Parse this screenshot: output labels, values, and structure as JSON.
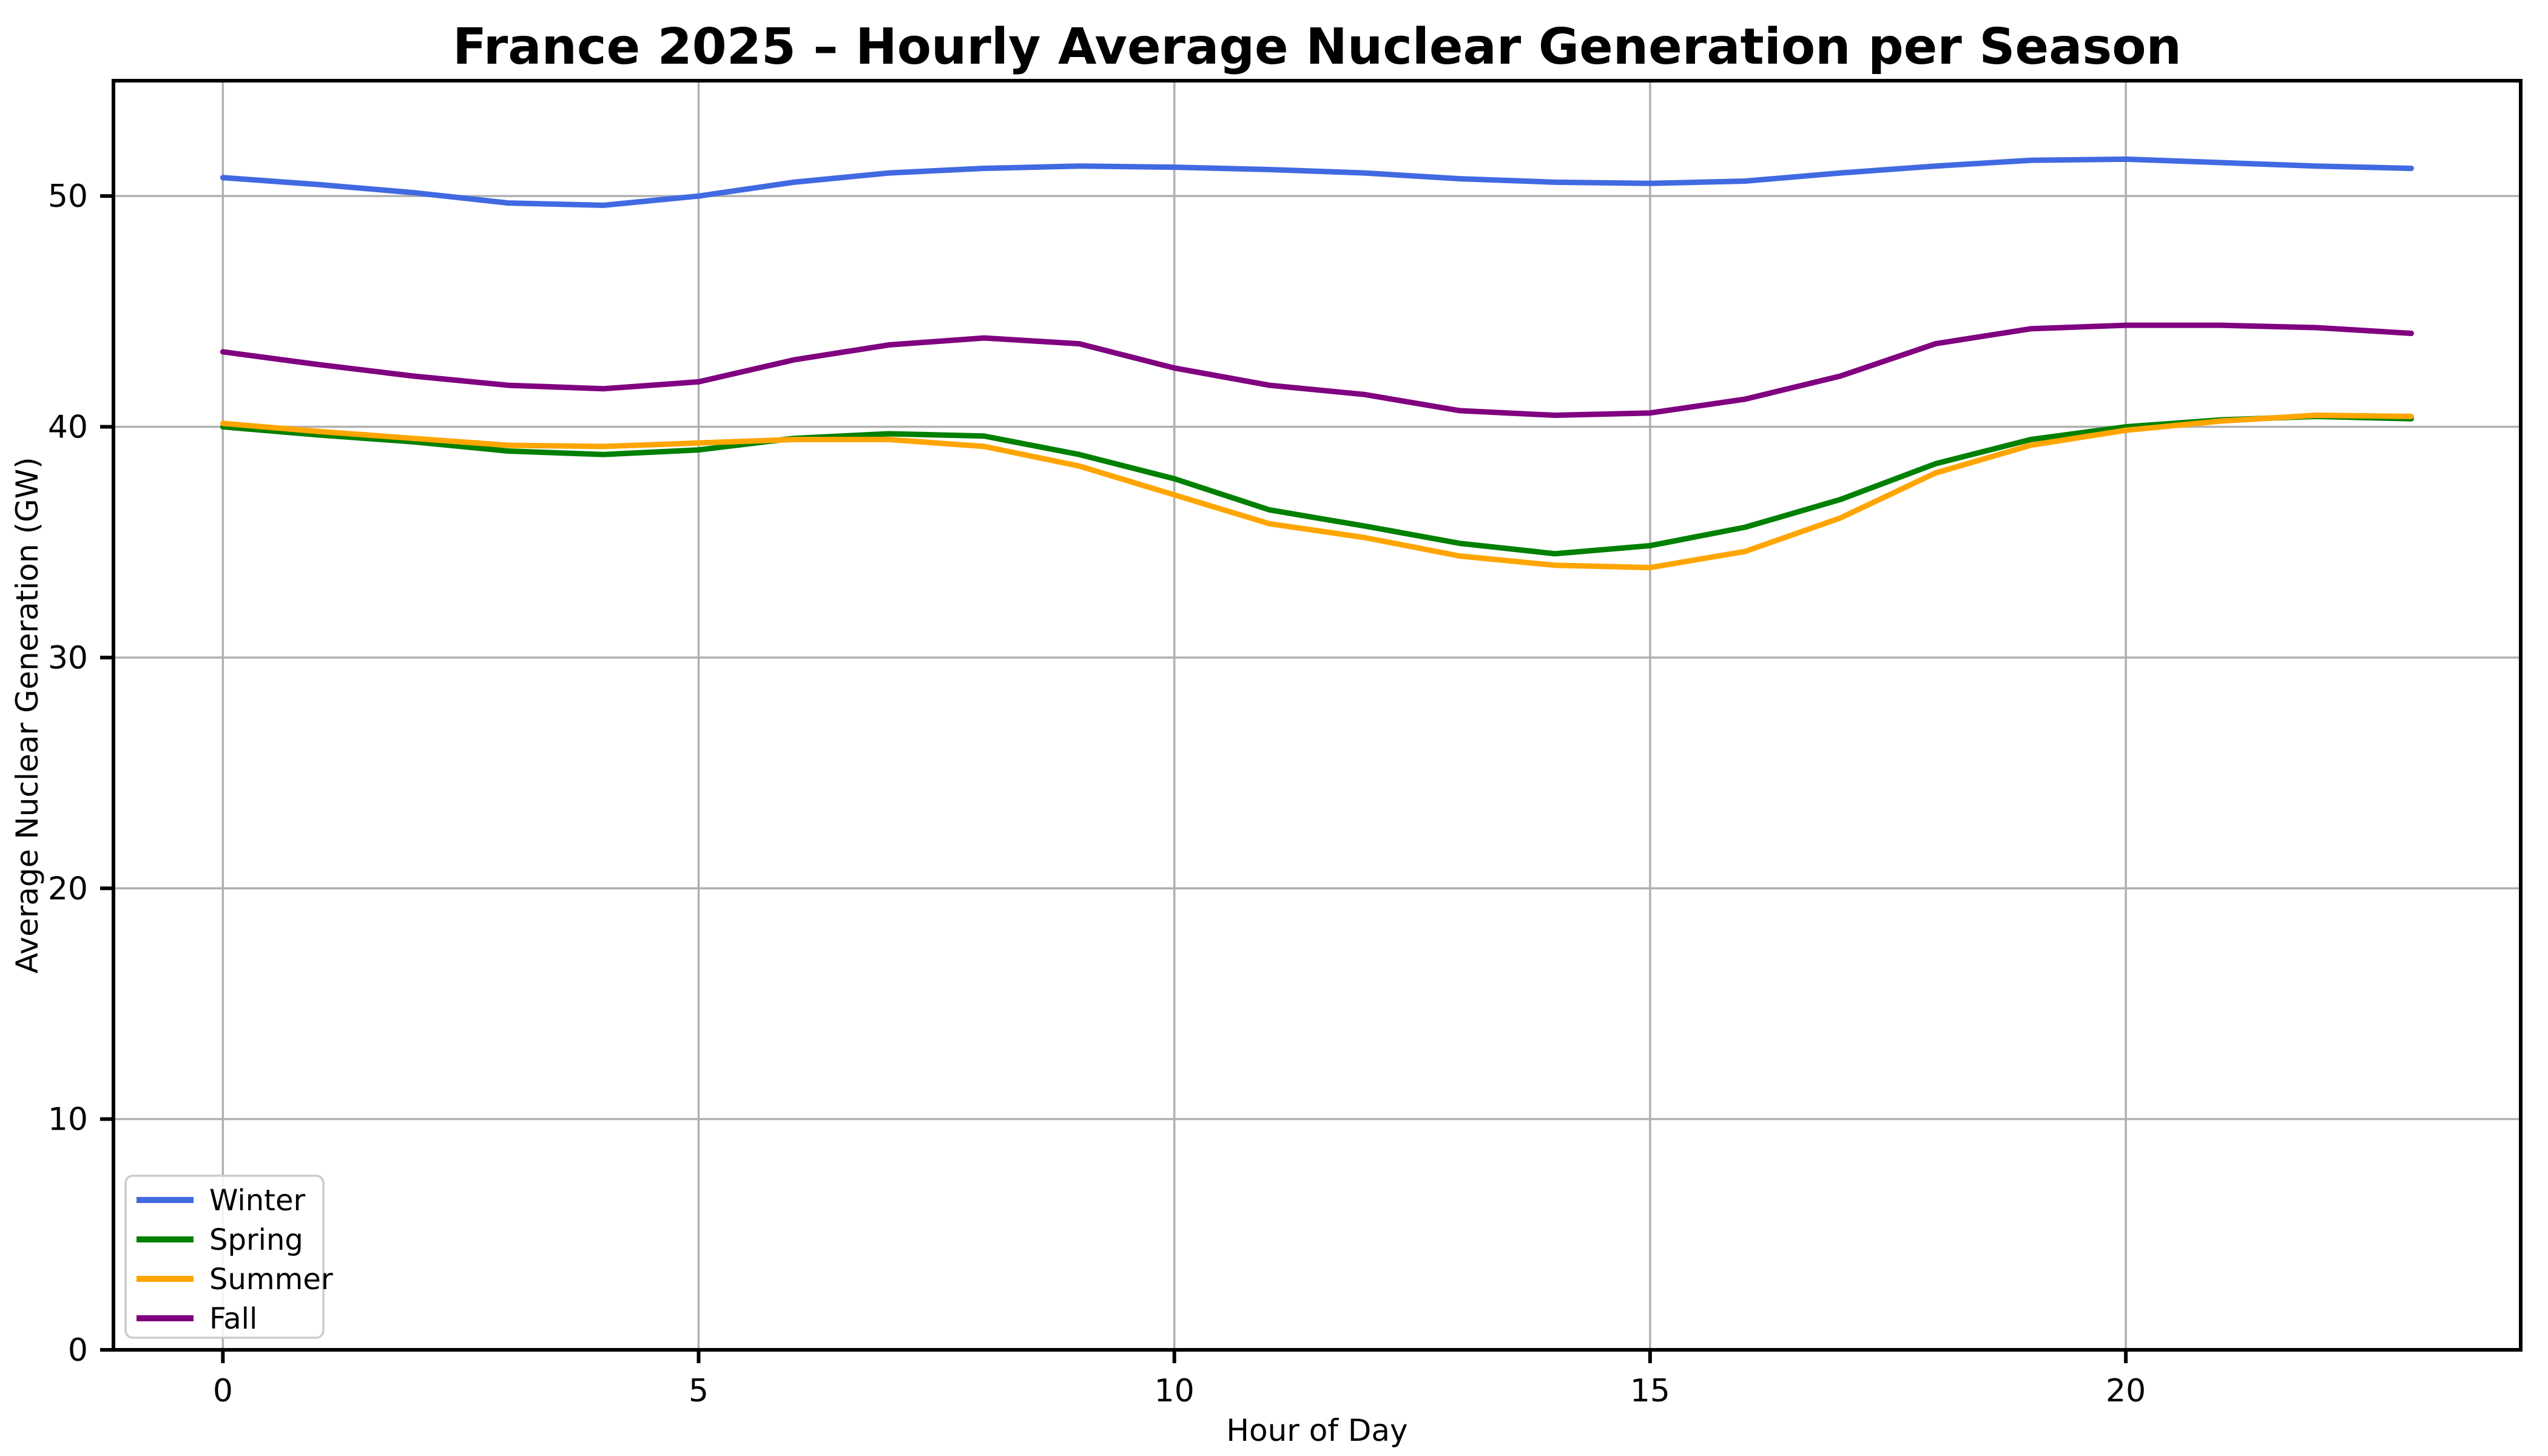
{
  "chart_data": {
    "type": "line",
    "title": "France 2025 – Hourly Average Nuclear Generation per Season",
    "xlabel": "Hour of Day",
    "ylabel": "Average Nuclear Generation (GW)",
    "x": [
      0,
      1,
      2,
      3,
      4,
      5,
      6,
      7,
      8,
      9,
      10,
      11,
      12,
      13,
      14,
      15,
      16,
      17,
      18,
      19,
      20,
      21,
      22,
      23
    ],
    "series": [
      {
        "name": "Winter",
        "color": "#4169E1",
        "values": [
          50.8,
          50.5,
          50.15,
          49.7,
          49.6,
          50.0,
          50.6,
          51.0,
          51.2,
          51.3,
          51.25,
          51.15,
          51.0,
          50.75,
          50.6,
          50.55,
          50.65,
          51.0,
          51.3,
          51.55,
          51.6,
          51.45,
          51.3,
          51.2
        ]
      },
      {
        "name": "Spring",
        "color": "#008000",
        "values": [
          40.0,
          39.65,
          39.35,
          38.95,
          38.8,
          39.0,
          39.5,
          39.7,
          39.6,
          38.8,
          37.75,
          36.4,
          35.7,
          34.95,
          34.5,
          34.85,
          35.65,
          36.85,
          38.4,
          39.45,
          40.0,
          40.3,
          40.45,
          40.35
        ]
      },
      {
        "name": "Summer",
        "color": "#FFA500",
        "values": [
          40.15,
          39.8,
          39.5,
          39.2,
          39.15,
          39.3,
          39.45,
          39.45,
          39.15,
          38.3,
          37.05,
          35.8,
          35.2,
          34.4,
          34.0,
          33.9,
          34.6,
          36.05,
          38.0,
          39.2,
          39.85,
          40.25,
          40.5,
          40.45
        ]
      },
      {
        "name": "Fall",
        "color": "#800080",
        "values": [
          43.25,
          42.7,
          42.2,
          41.8,
          41.65,
          41.95,
          42.9,
          43.55,
          43.85,
          43.6,
          42.55,
          41.8,
          41.4,
          40.7,
          40.5,
          40.6,
          41.2,
          42.2,
          43.6,
          44.25,
          44.4,
          44.4,
          44.3,
          44.05
        ]
      }
    ],
    "xlim": [
      -1.15,
      24.15
    ],
    "ylim": [
      0,
      55
    ],
    "xticks": [
      0,
      5,
      10,
      15,
      20
    ],
    "yticks": [
      0,
      10,
      20,
      30,
      40,
      50
    ],
    "xtick_labels": [
      "0",
      "5",
      "10",
      "15",
      "20"
    ],
    "ytick_labels": [
      "0",
      "10",
      "20",
      "30",
      "40",
      "50"
    ],
    "grid": true,
    "grid_color": "#b0b0b0",
    "spine_color": "#000000",
    "background": "#ffffff",
    "legend": {
      "position": "lower left",
      "labels": [
        "Winter",
        "Spring",
        "Summer",
        "Fall"
      ]
    }
  }
}
